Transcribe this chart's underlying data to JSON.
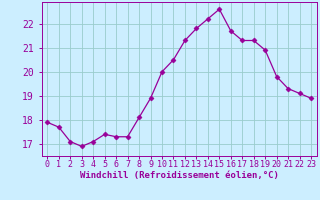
{
  "x": [
    0,
    1,
    2,
    3,
    4,
    5,
    6,
    7,
    8,
    9,
    10,
    11,
    12,
    13,
    14,
    15,
    16,
    17,
    18,
    19,
    20,
    21,
    22,
    23
  ],
  "y": [
    17.9,
    17.7,
    17.1,
    16.9,
    17.1,
    17.4,
    17.3,
    17.3,
    18.1,
    18.9,
    20.0,
    20.5,
    21.3,
    21.8,
    22.2,
    22.6,
    21.7,
    21.3,
    21.3,
    20.9,
    19.8,
    19.3,
    19.1,
    18.9
  ],
  "line_color": "#990099",
  "marker": "D",
  "marker_size": 2.5,
  "bg_color": "#cceeff",
  "grid_color": "#99cccc",
  "ylabel_ticks": [
    17,
    18,
    19,
    20,
    21,
    22
  ],
  "xtick_labels": [
    "0",
    "1",
    "2",
    "3",
    "4",
    "5",
    "6",
    "7",
    "8",
    "9",
    "10",
    "11",
    "12",
    "13",
    "14",
    "15",
    "16",
    "17",
    "18",
    "19",
    "20",
    "21",
    "22",
    "23"
  ],
  "xlabel": "Windchill (Refroidissement éolien,°C)",
  "ylim": [
    16.5,
    22.9
  ],
  "xlim": [
    -0.5,
    23.5
  ],
  "tick_color": "#990099",
  "label_color": "#990099",
  "tick_fontsize": 6.0,
  "ytick_fontsize": 7.0,
  "xlabel_fontsize": 6.5
}
